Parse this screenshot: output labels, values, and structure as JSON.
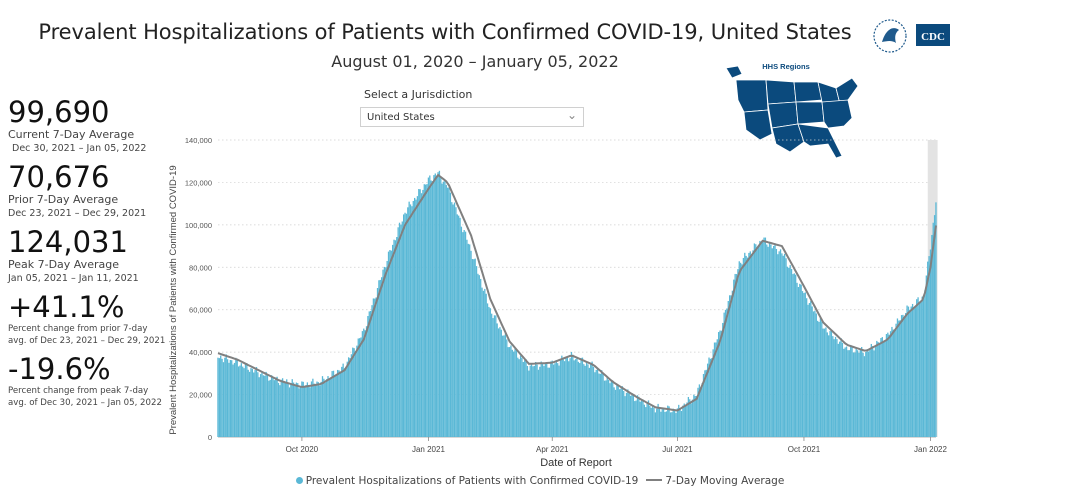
{
  "header": {
    "title": "Prevalent Hospitalizations of Patients with Confirmed COVID-19, United States",
    "subtitle": "August 01, 2020 – January 05, 2022"
  },
  "logos": {
    "hhs_icon": "hhs-eagle-icon",
    "cdc_label": "CDC"
  },
  "stats": [
    {
      "value": "99,690",
      "label": "Current 7-Day Average",
      "range": "Dec 30, 2021 – Jan 05, 2022"
    },
    {
      "value": "70,676",
      "label": "Prior 7-Day Average",
      "range": "Dec 23, 2021 – Dec 29, 2021"
    },
    {
      "value": "124,031",
      "label": "Peak 7-Day Average",
      "range": "Jan 05, 2021 – Jan 11, 2021"
    },
    {
      "value": "+41.1%",
      "note1": "Percent change from prior 7-day",
      "note2": "avg. of Dec 23, 2021 – Dec 29, 2021"
    },
    {
      "value": "-19.6%",
      "note1": "Percent change from peak 7-day",
      "note2": "avg. of Dec 30, 2021 – Jan 05, 2022"
    }
  ],
  "jurisdiction": {
    "label": "Select a Jurisdiction",
    "selected": "United States"
  },
  "map": {
    "title": "HHS Regions",
    "color": "#0b4a7d"
  },
  "colors": {
    "bar": "#5ab8d6",
    "line": "#808080",
    "shade": "#e3e3e3"
  },
  "chart_data": {
    "type": "bar",
    "x_start": "2020-08-01",
    "x_end": "2022-01-05",
    "xlabel": "Date of Report",
    "ylabel": "Prevalent Hospitalizations of Patients with Confirmed COVID-19",
    "ylim": [
      0,
      140000
    ],
    "yticks": [
      0,
      20000,
      40000,
      60000,
      80000,
      100000,
      120000,
      140000
    ],
    "ytick_labels": [
      "0",
      "20,000",
      "40,000",
      "60,000",
      "80,000",
      "100,000",
      "120,000",
      "140,000"
    ],
    "xticks": [
      {
        "date": "2020-10-01",
        "label": "Oct 2020"
      },
      {
        "date": "2021-01-01",
        "label": "Jan 2021"
      },
      {
        "date": "2021-04-01",
        "label": "Apr 2021"
      },
      {
        "date": "2021-07-01",
        "label": "Jul 2021"
      },
      {
        "date": "2021-10-01",
        "label": "Oct 2021"
      },
      {
        "date": "2022-01-01",
        "label": "Jan 2022"
      }
    ],
    "shaded_range": [
      "2021-12-30",
      "2022-01-05"
    ],
    "series": [
      {
        "name": "Prevalent Hospitalizations of Patients with Confirmed COVID-19",
        "kind": "bar",
        "points": [
          [
            "2020-08-01",
            38000
          ],
          [
            "2020-08-15",
            35000
          ],
          [
            "2020-09-01",
            30000
          ],
          [
            "2020-09-15",
            26500
          ],
          [
            "2020-10-01",
            24500
          ],
          [
            "2020-10-15",
            26000
          ],
          [
            "2020-11-01",
            33000
          ],
          [
            "2020-11-15",
            50000
          ],
          [
            "2020-12-01",
            82000
          ],
          [
            "2020-12-15",
            106000
          ],
          [
            "2021-01-01",
            121000
          ],
          [
            "2021-01-08",
            124500
          ],
          [
            "2021-01-15",
            118000
          ],
          [
            "2021-02-01",
            88000
          ],
          [
            "2021-02-15",
            60000
          ],
          [
            "2021-03-01",
            43000
          ],
          [
            "2021-03-15",
            33500
          ],
          [
            "2021-04-01",
            34500
          ],
          [
            "2021-04-15",
            38000
          ],
          [
            "2021-05-01",
            33000
          ],
          [
            "2021-05-15",
            25000
          ],
          [
            "2021-06-01",
            18500
          ],
          [
            "2021-06-15",
            13500
          ],
          [
            "2021-07-01",
            12500
          ],
          [
            "2021-07-15",
            20000
          ],
          [
            "2021-08-01",
            50000
          ],
          [
            "2021-08-15",
            82000
          ],
          [
            "2021-09-01",
            93000
          ],
          [
            "2021-09-15",
            87000
          ],
          [
            "2021-10-01",
            68000
          ],
          [
            "2021-10-15",
            52000
          ],
          [
            "2021-11-01",
            42000
          ],
          [
            "2021-11-15",
            40000
          ],
          [
            "2021-12-01",
            48000
          ],
          [
            "2021-12-15",
            60000
          ],
          [
            "2021-12-27",
            66000
          ],
          [
            "2022-01-01",
            90000
          ],
          [
            "2022-01-05",
            111000
          ]
        ]
      },
      {
        "name": "7-Day Moving Average",
        "kind": "line",
        "points": [
          [
            "2020-08-01",
            39500
          ],
          [
            "2020-08-15",
            36500
          ],
          [
            "2020-09-01",
            31000
          ],
          [
            "2020-09-15",
            26500
          ],
          [
            "2020-10-01",
            23500
          ],
          [
            "2020-10-15",
            25000
          ],
          [
            "2020-11-01",
            31500
          ],
          [
            "2020-11-15",
            46000
          ],
          [
            "2020-12-01",
            77000
          ],
          [
            "2020-12-15",
            100000
          ],
          [
            "2021-01-01",
            117000
          ],
          [
            "2021-01-08",
            123500
          ],
          [
            "2021-01-15",
            120000
          ],
          [
            "2021-02-01",
            95000
          ],
          [
            "2021-02-15",
            65000
          ],
          [
            "2021-03-01",
            45000
          ],
          [
            "2021-03-15",
            34500
          ],
          [
            "2021-04-01",
            35000
          ],
          [
            "2021-04-15",
            38500
          ],
          [
            "2021-05-01",
            34000
          ],
          [
            "2021-05-15",
            26000
          ],
          [
            "2021-06-01",
            19000
          ],
          [
            "2021-06-15",
            14000
          ],
          [
            "2021-07-01",
            12500
          ],
          [
            "2021-07-15",
            18000
          ],
          [
            "2021-08-01",
            45000
          ],
          [
            "2021-08-15",
            78000
          ],
          [
            "2021-09-01",
            92500
          ],
          [
            "2021-09-15",
            90000
          ],
          [
            "2021-10-01",
            71000
          ],
          [
            "2021-10-15",
            54000
          ],
          [
            "2021-11-01",
            43500
          ],
          [
            "2021-11-15",
            40500
          ],
          [
            "2021-12-01",
            46000
          ],
          [
            "2021-12-15",
            58000
          ],
          [
            "2021-12-27",
            65000
          ],
          [
            "2022-01-01",
            80000
          ],
          [
            "2022-01-05",
            99690
          ]
        ]
      }
    ],
    "legend_position": "bottom",
    "grid": "horizontal-dotted"
  }
}
